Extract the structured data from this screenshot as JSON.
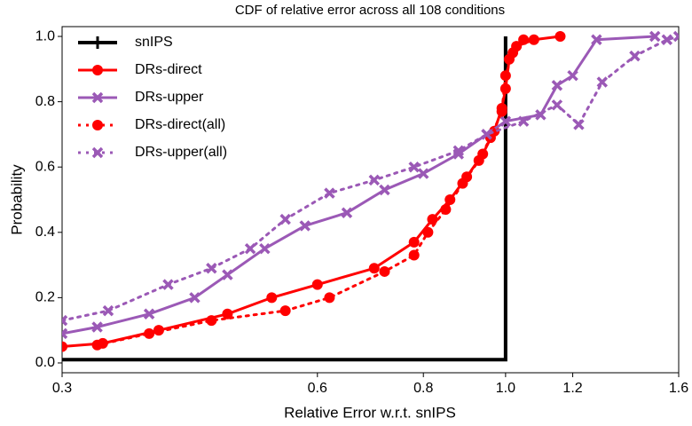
{
  "chart_data": {
    "type": "line",
    "title": "CDF of relative error across all 108 conditions",
    "x_label": "Relative Error w.r.t. snIPS",
    "y_label": "Probability",
    "xscale": "log",
    "xlim": [
      0.3,
      1.6
    ],
    "ylim": [
      -0.03,
      1.03
    ],
    "xticks": [
      0.3,
      0.6,
      0.8,
      {
        "value": 1,
        "label": "1.0"
      },
      1.2,
      1.6
    ],
    "yticks": [
      {
        "value": 0,
        "label": "0.0"
      },
      0.2,
      0.4,
      0.6,
      0.8,
      {
        "value": 1,
        "label": "1.0"
      }
    ],
    "legend": "upper left",
    "series": [
      {
        "name": "snIPS",
        "color": "#000000",
        "linestyle": "solid",
        "marker": "none",
        "x": [
          0.3,
          1.0,
          1.0
        ],
        "values": [
          0.01,
          0.01,
          1.0
        ]
      },
      {
        "name": "DRs-direct",
        "color": "#ff0000",
        "linestyle": "solid",
        "marker": "o",
        "x": [
          0.3,
          0.335,
          0.39,
          0.47,
          0.53,
          0.6,
          0.7,
          0.78,
          0.82,
          0.86,
          0.9,
          0.94,
          0.97,
          0.99,
          1.0,
          1.01,
          1.03,
          1.08,
          1.16
        ],
        "values": [
          0.05,
          0.06,
          0.1,
          0.15,
          0.2,
          0.24,
          0.29,
          0.37,
          0.44,
          0.5,
          0.57,
          0.64,
          0.71,
          0.78,
          0.84,
          0.93,
          0.97,
          0.99,
          1.0
        ]
      },
      {
        "name": "DRs-upper",
        "color": "#9b59b6",
        "linestyle": "solid",
        "marker": "x",
        "x": [
          0.3,
          0.33,
          0.38,
          0.43,
          0.47,
          0.52,
          0.58,
          0.65,
          0.72,
          0.8,
          0.88,
          0.95,
          1.0,
          1.1,
          1.15,
          1.2,
          1.28,
          1.5
        ],
        "values": [
          0.09,
          0.11,
          0.15,
          0.2,
          0.27,
          0.35,
          0.42,
          0.46,
          0.53,
          0.58,
          0.64,
          0.7,
          0.74,
          0.76,
          0.85,
          0.88,
          0.99,
          1.0
        ]
      },
      {
        "name": "DRs-direct(all)",
        "color": "#ff0000",
        "linestyle": "dotted",
        "marker": "o",
        "x": [
          0.33,
          0.38,
          0.45,
          0.55,
          0.62,
          0.72,
          0.78,
          0.81,
          0.85,
          0.89,
          0.93,
          0.96,
          0.99,
          1.0,
          1.02,
          1.05
        ],
        "values": [
          0.055,
          0.09,
          0.13,
          0.16,
          0.2,
          0.28,
          0.33,
          0.4,
          0.47,
          0.55,
          0.62,
          0.69,
          0.77,
          0.88,
          0.95,
          0.99
        ]
      },
      {
        "name": "DRs-upper(all)",
        "color": "#9b59b6",
        "linestyle": "dotted",
        "marker": "x",
        "x": [
          0.3,
          0.34,
          0.4,
          0.45,
          0.5,
          0.55,
          0.62,
          0.7,
          0.78,
          0.88,
          0.95,
          1.05,
          1.15,
          1.22,
          1.3,
          1.42,
          1.55,
          1.6
        ],
        "values": [
          0.13,
          0.16,
          0.24,
          0.29,
          0.35,
          0.44,
          0.52,
          0.56,
          0.6,
          0.65,
          0.7,
          0.74,
          0.79,
          0.73,
          0.86,
          0.94,
          0.99,
          1.0
        ]
      }
    ]
  }
}
